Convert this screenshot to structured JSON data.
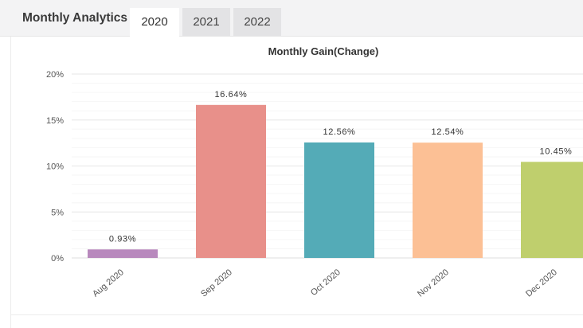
{
  "widget": {
    "title": "Monthly Analytics",
    "tabs": [
      {
        "label": "2020",
        "active": true
      },
      {
        "label": "2021",
        "active": false
      },
      {
        "label": "2022",
        "active": false
      }
    ]
  },
  "chart_data": {
    "type": "bar",
    "title": "Monthly Gain(Change)",
    "xlabel": "",
    "ylabel": "",
    "categories": [
      "Aug 2020",
      "Sep 2020",
      "Oct 2020",
      "Nov 2020",
      "Dec 2020"
    ],
    "values": [
      0.93,
      16.64,
      12.56,
      12.54,
      10.45
    ],
    "data_labels": [
      "0.93%",
      "16.64%",
      "12.56%",
      "12.54%",
      "10.45%"
    ],
    "colors": [
      "#b889bd",
      "#e8908a",
      "#54abb7",
      "#fcc095",
      "#bfcf6d"
    ],
    "ylim": [
      0,
      20
    ],
    "yticks": [
      0,
      5,
      10,
      15,
      20
    ],
    "ytick_labels": [
      "0%",
      "5%",
      "10%",
      "15%",
      "20%"
    ],
    "grid": true,
    "legend": "none"
  }
}
